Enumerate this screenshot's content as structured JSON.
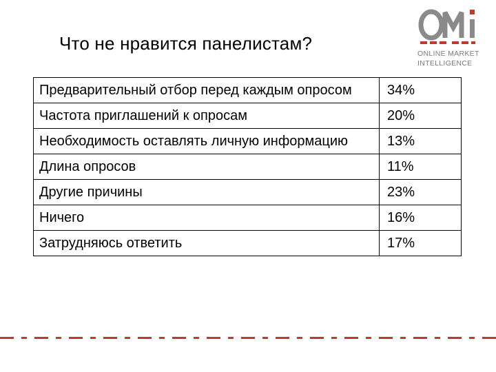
{
  "title": "Что не нравится панелистам?",
  "logo": {
    "mark_text": "OMi",
    "line1": "ONLINE MARKET",
    "line2": "INTELLIGENCE",
    "brand_color": "#c0392b",
    "gray_color": "#8a8a8a"
  },
  "rows": [
    {
      "label": "Предварительный отбор перед каждым опросом",
      "value": "34%"
    },
    {
      "label": "Частота приглашений к опросам",
      "value": "20%"
    },
    {
      "label": "Необходимость оставлять личную информацию",
      "value": "13%"
    },
    {
      "label": "Длина опросов",
      "value": "11%"
    },
    {
      "label": "Другие причины",
      "value": "23%"
    },
    {
      "label": "Ничего",
      "value": "16%"
    },
    {
      "label": "Затрудняюсь ответить",
      "value": "17%"
    }
  ],
  "accent_color": "#c0392b"
}
